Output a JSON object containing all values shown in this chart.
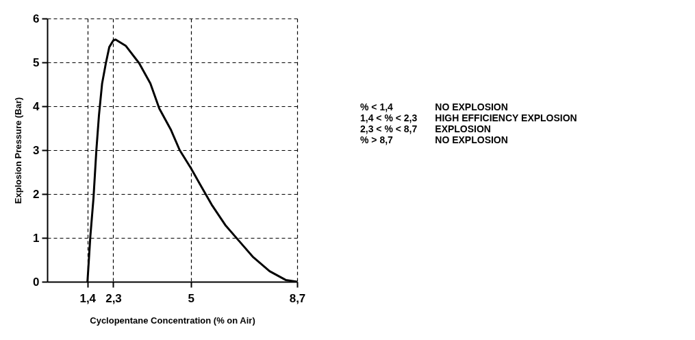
{
  "chart_data": {
    "type": "line",
    "xlabel": "Cyclopentane Concentration (% on Air)",
    "ylabel": "Explosion Pressure (Bar)",
    "x": [
      1.4,
      1.5,
      1.61,
      1.71,
      1.8,
      1.91,
      2.04,
      2.16,
      2.3,
      2.38,
      2.73,
      3.2,
      3.59,
      3.9,
      4.3,
      4.61,
      5.0,
      5.32,
      5.72,
      6.2,
      6.69,
      7.17,
      7.74,
      8.3,
      8.7
    ],
    "series": [
      {
        "color": "#000000",
        "values": [
          0,
          1.03,
          1.91,
          3.0,
          3.79,
          4.52,
          4.98,
          5.35,
          5.5,
          5.52,
          5.38,
          4.98,
          4.52,
          3.95,
          3.47,
          3.0,
          2.59,
          2.22,
          1.76,
          1.29,
          0.92,
          0.56,
          0.24,
          0.04,
          0
        ]
      }
    ],
    "xlim": [
      0,
      8.7
    ],
    "xticks": [
      {
        "value": 1.4,
        "label": "1,4"
      },
      {
        "value": 2.3,
        "label": "2,3"
      },
      5,
      {
        "value": 8.7,
        "label": "8,7"
      }
    ],
    "ylim": [
      0,
      6
    ],
    "yticks": [
      0,
      1,
      2,
      3,
      4,
      5,
      6
    ],
    "grid": true,
    "marker": "none",
    "line_style": "solid",
    "annotations": [
      "% < 1,4",
      "NO EXPLOSION",
      "1,4 < % < 2,3",
      "HIGH EFFICIENCY EXPLOSION",
      "2,3 < % < 8,7",
      "EXPLOSION",
      "% > 8,7",
      "NO EXPLOSION"
    ]
  }
}
